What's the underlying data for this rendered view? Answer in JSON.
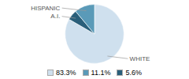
{
  "chart_data": {
    "type": "pie",
    "categories": [
      "WHITE",
      "A.I.",
      "HISPANIC"
    ],
    "values": [
      83.3,
      5.6,
      11.1
    ],
    "colors": [
      "#cfe0ee",
      "#2a5f7a",
      "#5a9ab8"
    ],
    "legend": "bottom",
    "legend_entries": [
      {
        "label": "83.3%",
        "color": "#cfe0ee"
      },
      {
        "label": "11.1%",
        "color": "#5a9ab8"
      },
      {
        "label": "5.6%",
        "color": "#2a5f7a"
      }
    ]
  }
}
